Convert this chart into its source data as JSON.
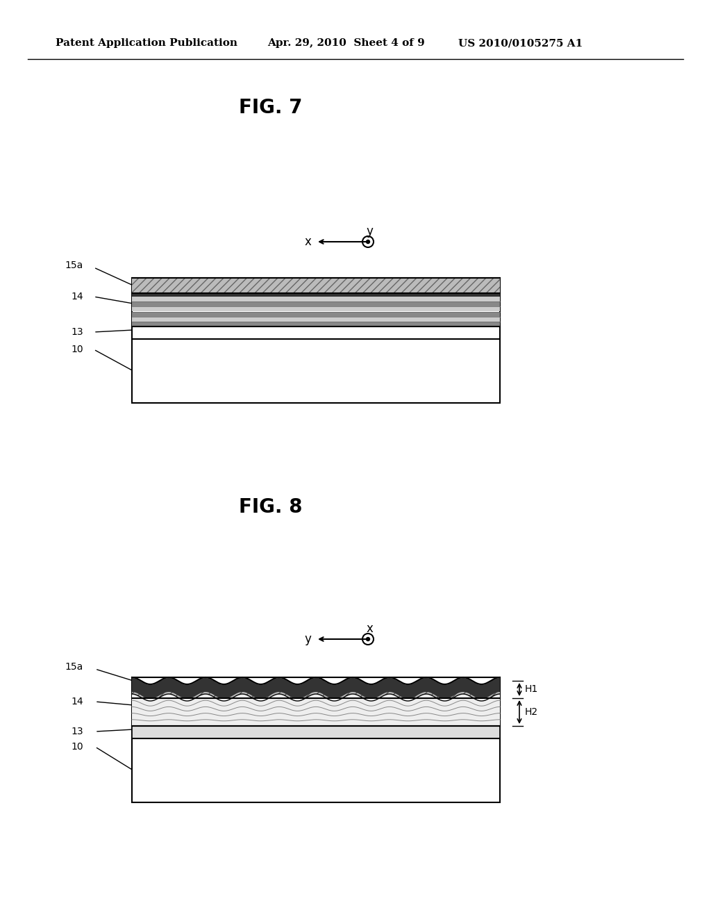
{
  "background_color": "#ffffff",
  "header_left": "Patent Application Publication",
  "header_mid": "Apr. 29, 2010  Sheet 4 of 9",
  "header_right": "US 2010/0105275 A1",
  "fig7_title": "FIG. 7",
  "fig8_title": "FIG. 8",
  "fig7_axis_x": "x",
  "fig7_axis_y": "y",
  "fig8_axis_x": "x",
  "fig8_axis_y": "y",
  "label_15a": "15a",
  "label_14": "14",
  "label_13": "13",
  "label_10": "10",
  "label_H1": "H1",
  "label_H2": "H2",
  "text_color": "#000000",
  "line_color": "#000000",
  "hatch_color": "#555555",
  "thin_line_color": "#888888"
}
